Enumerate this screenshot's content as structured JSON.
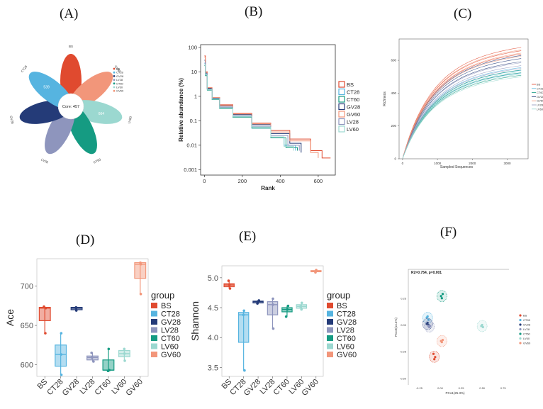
{
  "panel_labels": [
    "(A)",
    "(B)",
    "(C)",
    "(D)",
    "(E)",
    "(F)"
  ],
  "colors": {
    "BS": "#e04a2f",
    "CT28": "#56b4e0",
    "GV28": "#243b78",
    "LV28": "#8e95bd",
    "CT60": "#159b82",
    "LV60": "#9bd8d0",
    "GV60": "#f2967a"
  },
  "chart_data": [
    {
      "type": "other",
      "subtype": "flower",
      "center_label": "Core: 457",
      "petals": [
        {
          "name": "BS",
          "value": ""
        },
        {
          "name": "GV60",
          "value": ""
        },
        {
          "name": "LV60",
          "value": "664"
        },
        {
          "name": "CT60",
          "value": ""
        },
        {
          "name": "LV28",
          "value": ""
        },
        {
          "name": "GV28",
          "value": ""
        },
        {
          "name": "CT28",
          "value": "539"
        }
      ],
      "legend": [
        "BS",
        "CT28",
        "GV28",
        "LV28",
        "CT60",
        "LV60",
        "GV60"
      ]
    },
    {
      "type": "line",
      "subtype": "rank-abundance",
      "xlabel": "Rank",
      "ylabel": "Relative abundance (%)",
      "yscale": "log",
      "xlim": [
        -20,
        690
      ],
      "ylim": [
        0.0006,
        130
      ],
      "xticks": [
        0,
        200,
        400,
        600
      ],
      "yticks": [
        {
          "v": 100,
          "label": "100"
        },
        {
          "v": 10,
          "label": "10"
        },
        {
          "v": 1,
          "label": "1"
        },
        {
          "v": 0.1,
          "label": "0.1"
        },
        {
          "v": 0.01,
          "label": "0.01"
        },
        {
          "v": 0.001,
          "label": "0.001"
        }
      ],
      "legend": [
        "BS",
        "CT28",
        "CT60",
        "GV28",
        "GV60",
        "LV28",
        "LV60"
      ],
      "series": [
        {
          "name": "BS",
          "x": [
            0,
            5,
            15,
            40,
            80,
            150,
            250,
            350,
            450,
            560,
            620,
            665
          ],
          "y": [
            45,
            10,
            2.2,
            0.9,
            0.45,
            0.2,
            0.08,
            0.04,
            0.018,
            0.006,
            0.003,
            0.003
          ]
        },
        {
          "name": "CT28",
          "x": [
            0,
            5,
            15,
            40,
            80,
            150,
            250,
            350,
            420,
            480
          ],
          "y": [
            22,
            8,
            2,
            0.8,
            0.35,
            0.15,
            0.05,
            0.02,
            0.01,
            0.006
          ]
        },
        {
          "name": "CT60",
          "x": [
            0,
            5,
            15,
            40,
            80,
            150,
            250,
            350,
            430,
            490
          ],
          "y": [
            18,
            7,
            1.8,
            0.75,
            0.32,
            0.14,
            0.05,
            0.02,
            0.008,
            0.006
          ]
        },
        {
          "name": "GV28",
          "x": [
            0,
            5,
            15,
            40,
            80,
            150,
            250,
            350,
            450,
            510
          ],
          "y": [
            30,
            9,
            2.1,
            0.85,
            0.4,
            0.18,
            0.07,
            0.03,
            0.012,
            0.005
          ]
        },
        {
          "name": "GV60",
          "x": [
            0,
            5,
            15,
            40,
            80,
            150,
            250,
            350,
            450,
            560,
            600
          ],
          "y": [
            40,
            9.5,
            2.3,
            0.9,
            0.42,
            0.19,
            0.075,
            0.035,
            0.015,
            0.005,
            0.003
          ]
        },
        {
          "name": "LV28",
          "x": [
            0,
            5,
            15,
            40,
            80,
            150,
            250,
            350,
            440,
            500
          ],
          "y": [
            25,
            8.5,
            2,
            0.8,
            0.36,
            0.16,
            0.06,
            0.025,
            0.01,
            0.006
          ]
        },
        {
          "name": "LV60",
          "x": [
            0,
            5,
            15,
            40,
            80,
            150,
            250,
            350,
            420,
            470
          ],
          "y": [
            20,
            7.5,
            1.9,
            0.78,
            0.34,
            0.15,
            0.055,
            0.022,
            0.009,
            0.006
          ]
        }
      ]
    },
    {
      "type": "line",
      "subtype": "rarefaction",
      "xlabel": "Sampled Sequences",
      "ylabel": "Richness",
      "xlim": [
        -100,
        3600
      ],
      "ylim": [
        0,
        730
      ],
      "xticks": [
        0,
        1000,
        2000,
        3000
      ],
      "xticklabels": [
        "0",
        "1000",
        "2000",
        "3000"
      ],
      "yticks": [
        0,
        200,
        400,
        600
      ],
      "legend": [
        "BS",
        "CT28",
        "CT60",
        "GV28",
        "GV60",
        "LV28",
        "LV60"
      ],
      "series": [
        {
          "name": "BS",
          "asymptote": 690
        },
        {
          "name": "CT28",
          "asymptote": 565
        },
        {
          "name": "CT60",
          "asymptote": 550
        },
        {
          "name": "GV28",
          "asymptote": 640
        },
        {
          "name": "GV60",
          "asymptote": 675
        },
        {
          "name": "LV28",
          "asymptote": 595
        },
        {
          "name": "LV60",
          "asymptote": 540
        }
      ]
    },
    {
      "type": "box",
      "ylabel": "Ace",
      "legend_title": "group",
      "ylim": [
        585,
        735
      ],
      "yticks": [
        600,
        650,
        700
      ],
      "legend": [
        "BS",
        "CT28",
        "GV28",
        "LV28",
        "CT60",
        "LV60",
        "GV60"
      ],
      "categories": [
        "BS",
        "CT28",
        "GV28",
        "LV28",
        "CT60",
        "LV60",
        "GV60"
      ],
      "boxes": [
        {
          "name": "BS",
          "min": 640,
          "q1": 656,
          "median": 672,
          "q3": 673,
          "max": 674
        },
        {
          "name": "CT28",
          "min": 587,
          "q1": 598,
          "median": 613,
          "q3": 625,
          "max": 640
        },
        {
          "name": "GV28",
          "min": 669,
          "q1": 670,
          "median": 672,
          "q3": 673,
          "max": 673
        },
        {
          "name": "LV28",
          "min": 604,
          "q1": 606,
          "median": 609,
          "q3": 611,
          "max": 615
        },
        {
          "name": "CT60",
          "min": 592,
          "q1": 593,
          "median": 593,
          "q3": 606,
          "max": 620
        },
        {
          "name": "LV60",
          "min": 605,
          "q1": 610,
          "median": 614,
          "q3": 618,
          "max": 620
        },
        {
          "name": "GV60",
          "min": 690,
          "q1": 710,
          "median": 728,
          "q3": 730,
          "max": 730
        }
      ]
    },
    {
      "type": "box",
      "ylabel": "Shannon",
      "legend_title": "group",
      "ylim": [
        3.35,
        5.2
      ],
      "yticks": [
        3.5,
        4.0,
        4.5,
        5.0
      ],
      "yticklabels": [
        "3.5",
        "4.0",
        "4.5",
        "5.0"
      ],
      "legend": [
        "BS",
        "CT28",
        "GV28",
        "LV28",
        "CT60",
        "LV60",
        "GV60"
      ],
      "categories": [
        "BS",
        "CT28",
        "GV28",
        "LV28",
        "CT60",
        "LV60",
        "GV60"
      ],
      "boxes": [
        {
          "name": "BS",
          "min": 4.82,
          "q1": 4.85,
          "median": 4.88,
          "q3": 4.9,
          "max": 4.95
        },
        {
          "name": "CT28",
          "min": 3.45,
          "q1": 3.92,
          "median": 4.38,
          "q3": 4.42,
          "max": 4.45
        },
        {
          "name": "GV28",
          "min": 4.57,
          "q1": 4.58,
          "median": 4.6,
          "q3": 4.61,
          "max": 4.62
        },
        {
          "name": "LV28",
          "min": 4.15,
          "q1": 4.38,
          "median": 4.55,
          "q3": 4.6,
          "max": 4.65
        },
        {
          "name": "CT60",
          "min": 4.35,
          "q1": 4.43,
          "median": 4.47,
          "q3": 4.5,
          "max": 4.53
        },
        {
          "name": "LV60",
          "min": 4.47,
          "q1": 4.49,
          "median": 4.52,
          "q3": 4.55,
          "max": 4.58
        },
        {
          "name": "GV60",
          "min": 5.09,
          "q1": 5.1,
          "median": 5.11,
          "q3": 5.12,
          "max": 5.13
        }
      ]
    },
    {
      "type": "scatter",
      "subtype": "pcoa",
      "annotation": "R2=0.754, p=0.001",
      "xlabel": "PCo1(25.3%)",
      "ylabel": "PCo2(14.4%)",
      "xlim": [
        -0.38,
        0.82
      ],
      "ylim": [
        -0.56,
        0.52
      ],
      "xticks": [
        -0.25,
        0.0,
        0.25,
        0.5,
        0.75
      ],
      "xticklabels": [
        "-0.25",
        "0.00",
        "0.25",
        "0.50",
        "0.75"
      ],
      "yticks": [
        -0.5,
        -0.25,
        0.0,
        0.25
      ],
      "yticklabels": [
        "-0.50",
        "-0.25",
        "0.00",
        "0.25"
      ],
      "legend": [
        "BS",
        "CT28",
        "GV28",
        "LV28",
        "CT60",
        "LV60",
        "GV60"
      ],
      "groups": [
        {
          "name": "BS",
          "points": [
            [
              -0.08,
              -0.27
            ],
            [
              -0.06,
              -0.3
            ],
            [
              -0.07,
              -0.32
            ]
          ]
        },
        {
          "name": "CT28",
          "points": [
            [
              -0.16,
              0.07
            ],
            [
              -0.14,
              0.05
            ],
            [
              -0.15,
              0.08
            ]
          ]
        },
        {
          "name": "GV28",
          "points": [
            [
              -0.15,
              0.02
            ],
            [
              -0.14,
              0.0
            ],
            [
              -0.16,
              0.01
            ]
          ]
        },
        {
          "name": "LV28",
          "points": [
            [
              -0.13,
              -0.02
            ],
            [
              -0.12,
              -0.01
            ],
            [
              -0.14,
              -0.01
            ]
          ]
        },
        {
          "name": "CT60",
          "points": [
            [
              0.01,
              0.27
            ],
            [
              0.03,
              0.29
            ],
            [
              0.02,
              0.25
            ]
          ]
        },
        {
          "name": "LV60",
          "points": [
            [
              0.49,
              -0.01
            ],
            [
              0.51,
              -0.02
            ],
            [
              0.5,
              0.0
            ]
          ]
        },
        {
          "name": "GV60",
          "points": [
            [
              0.01,
              -0.15
            ],
            [
              0.03,
              -0.14
            ],
            [
              0.02,
              -0.16
            ]
          ]
        }
      ]
    }
  ]
}
